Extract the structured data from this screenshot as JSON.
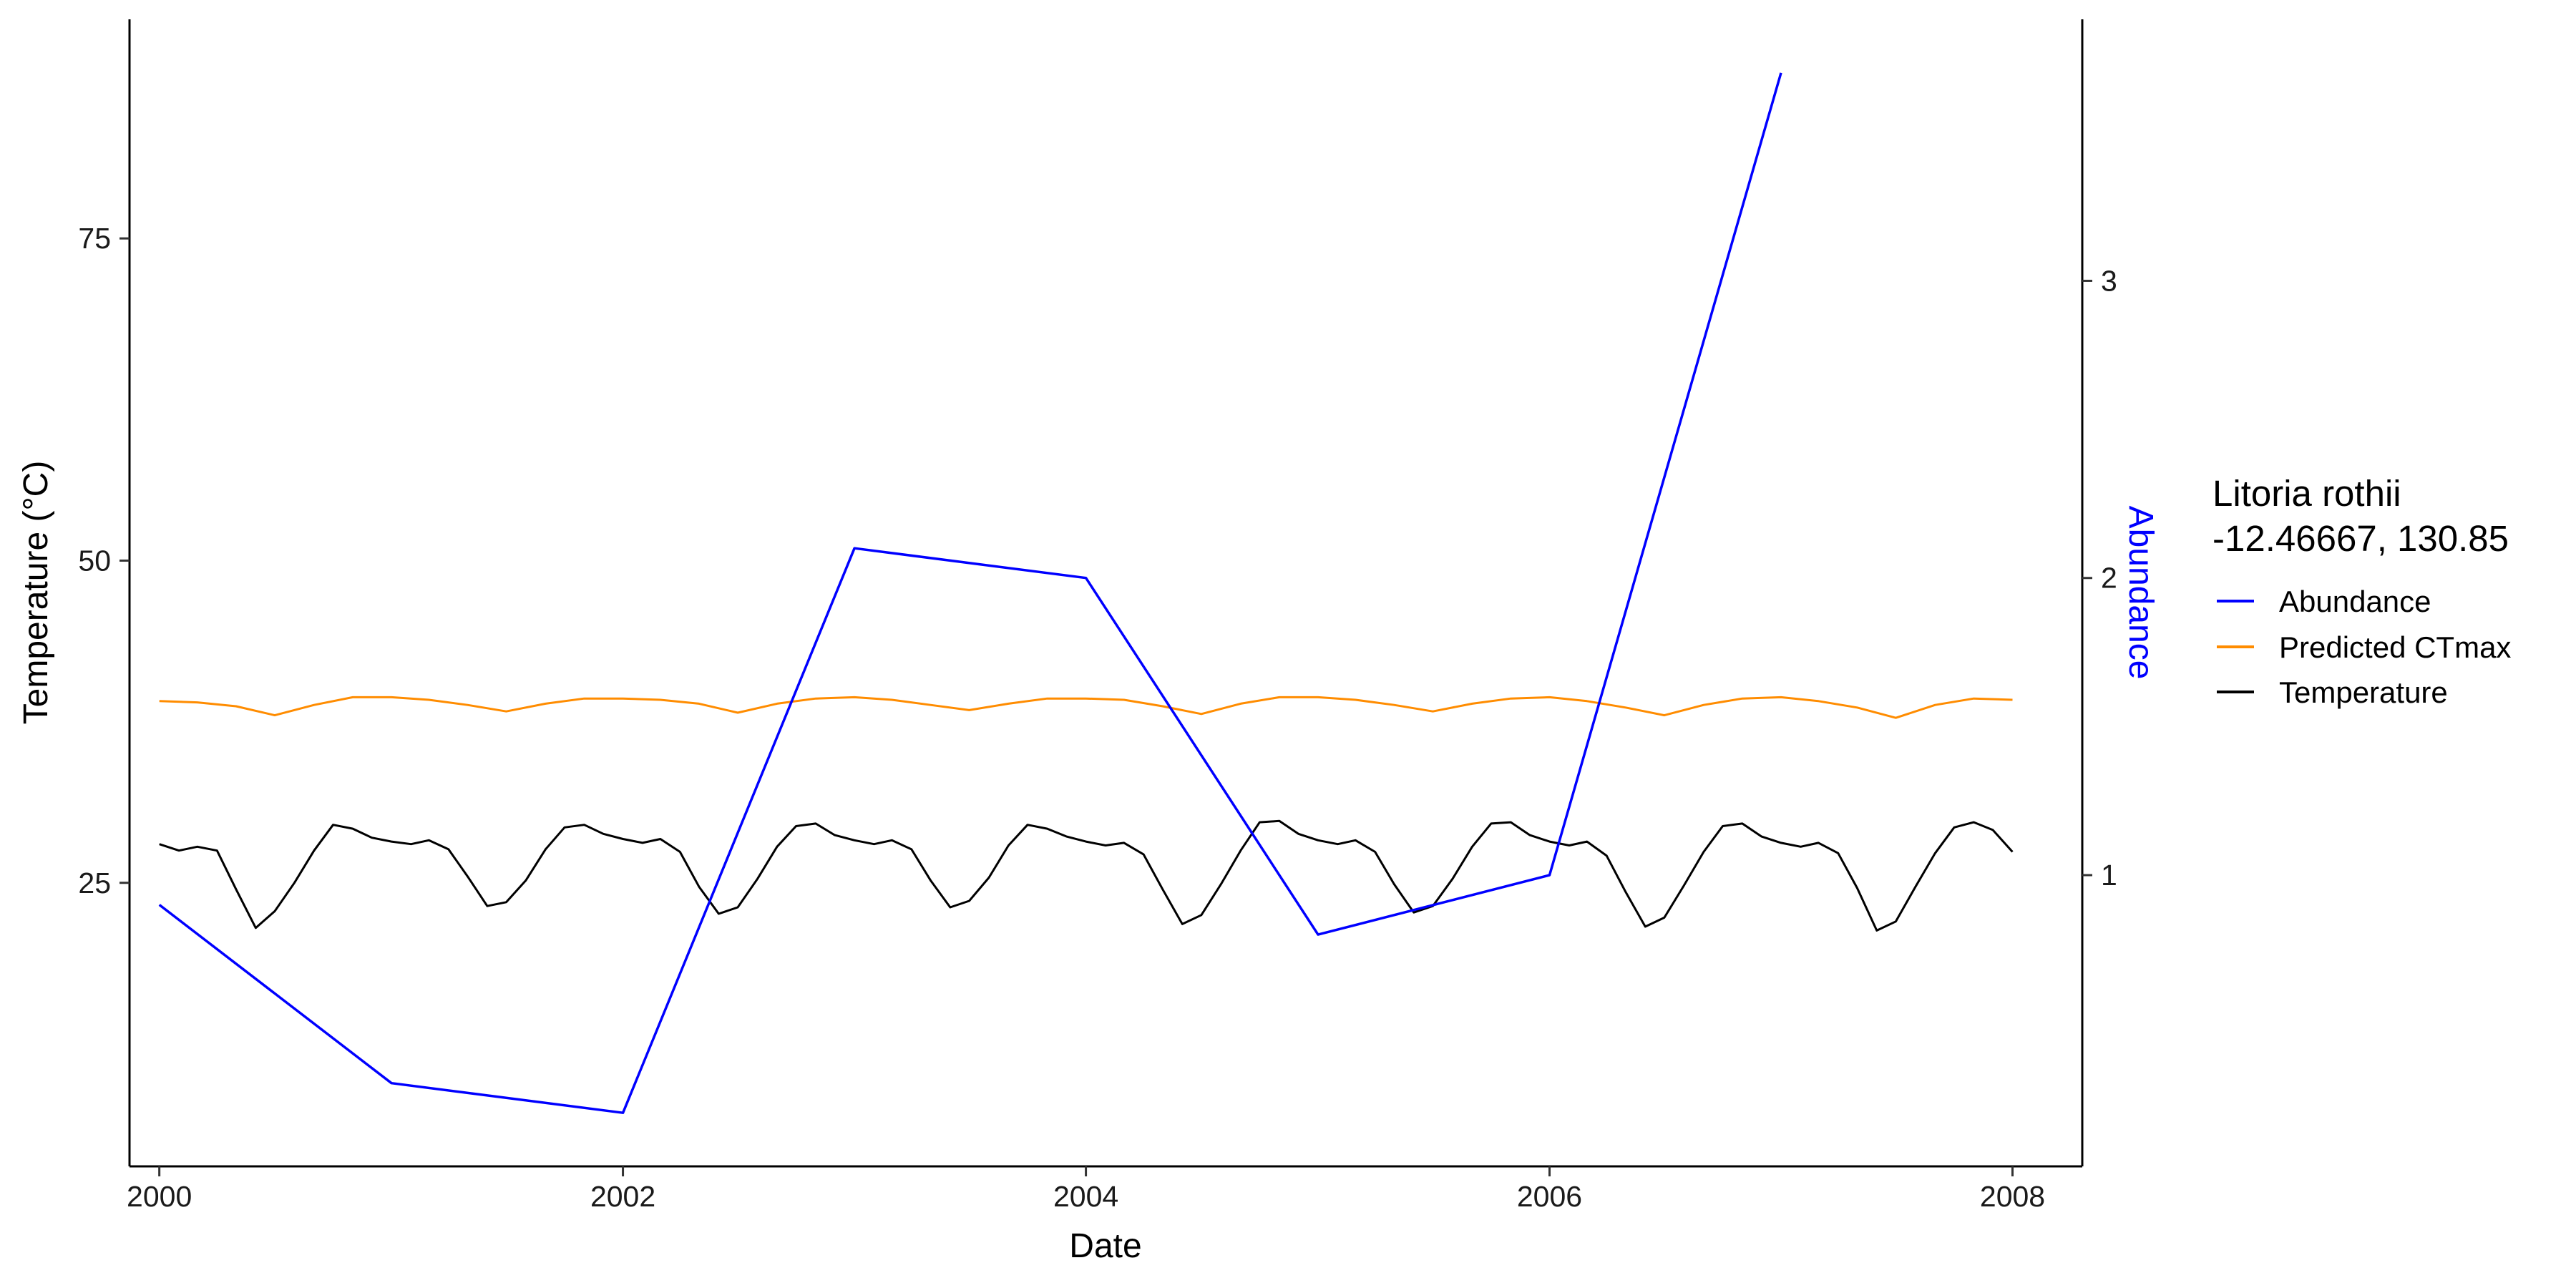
{
  "chart_data": {
    "type": "line",
    "xlabel": "Date",
    "ylabel": "Temperature (°C)",
    "y2label": "Abundance",
    "xlim": [
      "1999-11-15",
      "2008-04-20"
    ],
    "ylim": [
      3,
      92
    ],
    "y2lim": [
      0.02,
      3.88
    ],
    "x_ticks": [
      "2000",
      "2002",
      "2004",
      "2006",
      "2008"
    ],
    "y_ticks": [
      25,
      50,
      75
    ],
    "y2_ticks": [
      1,
      2,
      3
    ],
    "legend": {
      "title_line1": "Litoria rothii",
      "title_line2": "-12.46667, 130.85",
      "position": "right",
      "entries": [
        "Abundance",
        "Predicted CTmax",
        "Temperature"
      ]
    },
    "colors": {
      "abundance": "#0000ff",
      "ctmax": "#ff8c00",
      "temperature": "#000000",
      "axis_title_secondary": "#0000ff"
    },
    "grid": false,
    "series": [
      {
        "name": "Abundance",
        "axis": "secondary",
        "x": [
          "2000-01-01",
          "2001-01-01",
          "2002-01-01",
          "2003-01-01",
          "2004-01-01",
          "2005-01-01",
          "2006-01-01",
          "2007-01-01"
        ],
        "values": [
          0.9,
          0.3,
          0.2,
          2.1,
          2.0,
          0.8,
          1.0,
          3.7
        ]
      },
      {
        "name": "Predicted CTmax",
        "axis": "primary",
        "x": [
          "2000-01-01",
          "2000-03-01",
          "2000-05-01",
          "2000-07-01",
          "2000-09-01",
          "2000-11-01",
          "2001-01-01",
          "2001-03-01",
          "2001-05-01",
          "2001-07-01",
          "2001-09-01",
          "2001-11-01",
          "2002-01-01",
          "2002-03-01",
          "2002-05-01",
          "2002-07-01",
          "2002-09-01",
          "2002-11-01",
          "2003-01-01",
          "2003-03-01",
          "2003-05-01",
          "2003-07-01",
          "2003-09-01",
          "2003-11-01",
          "2004-01-01",
          "2004-03-01",
          "2004-05-01",
          "2004-07-01",
          "2004-09-01",
          "2004-11-01",
          "2005-01-01",
          "2005-03-01",
          "2005-05-01",
          "2005-07-01",
          "2005-09-01",
          "2005-11-01",
          "2006-01-01",
          "2006-03-01",
          "2006-05-01",
          "2006-07-01",
          "2006-09-01",
          "2006-11-01",
          "2007-01-01",
          "2007-03-01",
          "2007-05-01",
          "2007-07-01",
          "2007-09-01",
          "2007-11-01",
          "2008-01-01"
        ],
        "values": [
          39.1,
          39.0,
          38.7,
          38.0,
          38.8,
          39.4,
          39.4,
          39.2,
          38.8,
          38.3,
          38.9,
          39.3,
          39.3,
          39.2,
          38.9,
          38.2,
          38.9,
          39.3,
          39.4,
          39.2,
          38.8,
          38.4,
          38.9,
          39.3,
          39.3,
          39.2,
          38.7,
          38.1,
          38.9,
          39.4,
          39.4,
          39.2,
          38.8,
          38.3,
          38.9,
          39.3,
          39.4,
          39.1,
          38.6,
          38.0,
          38.8,
          39.3,
          39.4,
          39.1,
          38.6,
          37.8,
          38.8,
          39.3,
          39.2
        ]
      },
      {
        "name": "Temperature",
        "axis": "primary",
        "x": [
          "2000-01-01",
          "2000-02-01",
          "2000-03-01",
          "2000-04-01",
          "2000-05-01",
          "2000-06-01",
          "2000-07-01",
          "2000-08-01",
          "2000-09-01",
          "2000-10-01",
          "2000-11-01",
          "2000-12-01",
          "2001-01-01",
          "2001-02-01",
          "2001-03-01",
          "2001-04-01",
          "2001-05-01",
          "2001-06-01",
          "2001-07-01",
          "2001-08-01",
          "2001-09-01",
          "2001-10-01",
          "2001-11-01",
          "2001-12-01",
          "2002-01-01",
          "2002-02-01",
          "2002-03-01",
          "2002-04-01",
          "2002-05-01",
          "2002-06-01",
          "2002-07-01",
          "2002-08-01",
          "2002-09-01",
          "2002-10-01",
          "2002-11-01",
          "2002-12-01",
          "2003-01-01",
          "2003-02-01",
          "2003-03-01",
          "2003-04-01",
          "2003-05-01",
          "2003-06-01",
          "2003-07-01",
          "2003-08-01",
          "2003-09-01",
          "2003-10-01",
          "2003-11-01",
          "2003-12-01",
          "2004-01-01",
          "2004-02-01",
          "2004-03-01",
          "2004-04-01",
          "2004-05-01",
          "2004-06-01",
          "2004-07-01",
          "2004-08-01",
          "2004-09-01",
          "2004-10-01",
          "2004-11-01",
          "2004-12-01",
          "2005-01-01",
          "2005-02-01",
          "2005-03-01",
          "2005-04-01",
          "2005-05-01",
          "2005-06-01",
          "2005-07-01",
          "2005-08-01",
          "2005-09-01",
          "2005-10-01",
          "2005-11-01",
          "2005-12-01",
          "2006-01-01",
          "2006-02-01",
          "2006-03-01",
          "2006-04-01",
          "2006-05-01",
          "2006-06-01",
          "2006-07-01",
          "2006-08-01",
          "2006-09-01",
          "2006-10-01",
          "2006-11-01",
          "2006-12-01",
          "2007-01-01",
          "2007-02-01",
          "2007-03-01",
          "2007-04-01",
          "2007-05-01",
          "2007-06-01",
          "2007-07-01",
          "2007-08-01",
          "2007-09-01",
          "2007-10-01",
          "2007-11-01",
          "2007-12-01",
          "2008-01-01"
        ],
        "values": [
          28.0,
          27.5,
          27.8,
          27.5,
          24.5,
          21.5,
          22.8,
          25.0,
          27.5,
          29.5,
          29.2,
          28.5,
          28.2,
          28.0,
          28.3,
          27.6,
          25.5,
          23.2,
          23.5,
          25.2,
          27.6,
          29.3,
          29.5,
          28.8,
          28.4,
          28.1,
          28.4,
          27.4,
          24.7,
          22.6,
          23.1,
          25.3,
          27.8,
          29.4,
          29.6,
          28.7,
          28.3,
          28.0,
          28.3,
          27.6,
          25.2,
          23.1,
          23.6,
          25.4,
          27.9,
          29.5,
          29.2,
          28.6,
          28.2,
          27.9,
          28.1,
          27.2,
          24.5,
          21.8,
          22.5,
          24.9,
          27.5,
          29.7,
          29.8,
          28.8,
          28.3,
          28.0,
          28.3,
          27.4,
          24.9,
          22.7,
          23.2,
          25.3,
          27.8,
          29.6,
          29.7,
          28.7,
          28.2,
          27.9,
          28.2,
          27.1,
          24.3,
          21.6,
          22.3,
          24.8,
          27.4,
          29.4,
          29.6,
          28.6,
          28.1,
          27.8,
          28.1,
          27.3,
          24.6,
          21.3,
          22.0,
          24.7,
          27.3,
          29.3,
          29.7,
          29.1,
          27.4
        ]
      }
    ]
  }
}
